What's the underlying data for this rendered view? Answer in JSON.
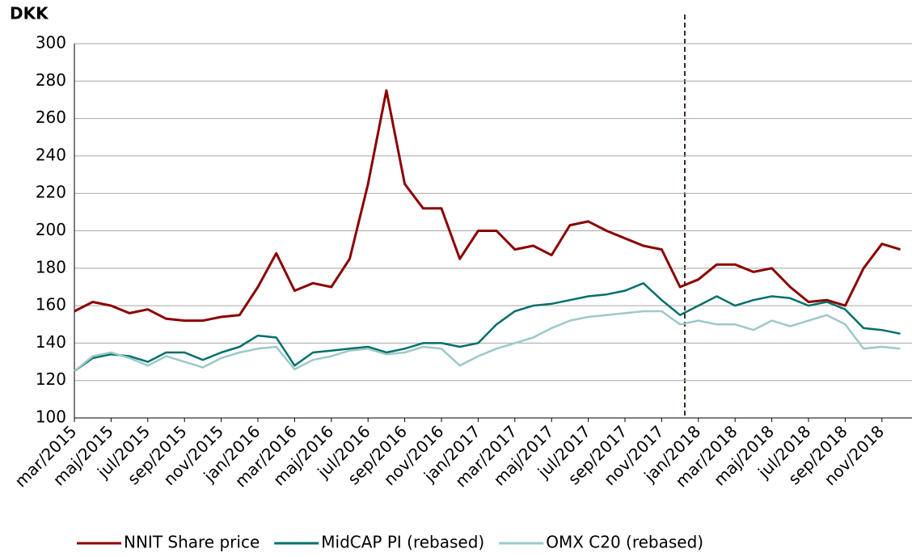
{
  "chart_data": {
    "type": "line",
    "y_label": "DKK",
    "categories": [
      "mar/2015",
      null,
      "maj/2015",
      null,
      "jul/2015",
      null,
      "sep/2015",
      null,
      "nov/2015",
      null,
      "jan/2016",
      null,
      "mar/2016",
      null,
      "maj/2016",
      null,
      "jul/2016",
      null,
      "sep/2016",
      null,
      "nov/2016",
      null,
      "jan/2017",
      null,
      "mar/2017",
      null,
      "maj/2017",
      null,
      "jul/2017",
      null,
      "sep/2017",
      null,
      "nov/2017",
      null,
      "jan/2018",
      null,
      "mar/2018",
      null,
      "maj/2018",
      null,
      "jul/2018",
      null,
      "sep/2018",
      null,
      "nov/2018",
      null
    ],
    "series": [
      {
        "name": "NNIT Share price",
        "color": "#8b0000",
        "values": [
          157,
          162,
          160,
          156,
          158,
          153,
          152,
          152,
          154,
          155,
          170,
          188,
          168,
          172,
          170,
          185,
          225,
          275,
          225,
          212,
          212,
          185,
          200,
          200,
          190,
          192,
          187,
          203,
          205,
          200,
          196,
          192,
          190,
          170,
          174,
          182,
          182,
          178,
          180,
          170,
          162,
          163,
          160,
          180,
          193,
          190
        ]
      },
      {
        "name": "MidCAP PI (rebased)",
        "color": "#00706b",
        "values": [
          125,
          132,
          134,
          133,
          130,
          135,
          135,
          131,
          135,
          138,
          144,
          143,
          128,
          135,
          136,
          137,
          138,
          135,
          137,
          140,
          140,
          138,
          140,
          150,
          157,
          160,
          161,
          163,
          165,
          166,
          168,
          172,
          163,
          155,
          160,
          165,
          160,
          163,
          165,
          164,
          160,
          162,
          158,
          148,
          147,
          145
        ]
      },
      {
        "name": "OMX C20 (rebased)",
        "color": "#9dc8c8",
        "values": [
          125,
          133,
          135,
          132,
          128,
          133,
          130,
          127,
          132,
          135,
          137,
          138,
          126,
          131,
          133,
          136,
          137,
          134,
          135,
          138,
          137,
          128,
          133,
          137,
          140,
          143,
          148,
          152,
          154,
          155,
          156,
          157,
          157,
          150,
          152,
          150,
          150,
          147,
          152,
          149,
          152,
          155,
          150,
          137,
          138,
          137
        ]
      }
    ],
    "ylim": [
      100,
      300
    ],
    "yticks": [
      100,
      120,
      140,
      160,
      180,
      200,
      220,
      240,
      260,
      280,
      300
    ],
    "grid": true
  }
}
